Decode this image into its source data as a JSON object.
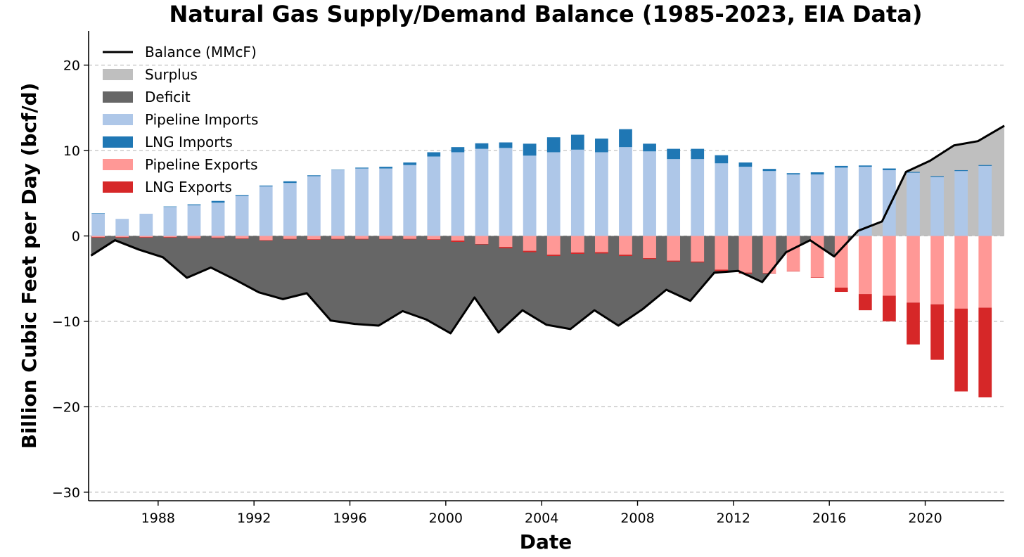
{
  "chart_data": {
    "type": "bar",
    "title": "Natural Gas Supply/Demand Balance (1985-2023, EIA Data)",
    "xlabel": "Date",
    "ylabel": "Billion Cubic Feet per Day (bcf/d)",
    "ylim": [
      -31,
      24
    ],
    "yticks": [
      20,
      10,
      0,
      -10,
      -20,
      -30
    ],
    "ytick_labels": [
      "20",
      "10",
      "0",
      "−10",
      "−20",
      "−30"
    ],
    "xlim": [
      1985.1,
      2023.3
    ],
    "xticks": [
      1988,
      1992,
      1996,
      2000,
      2004,
      2008,
      2012,
      2016,
      2020
    ],
    "xtick_labels": [
      "1988",
      "1992",
      "1996",
      "2000",
      "2004",
      "2008",
      "2012",
      "2016",
      "2020"
    ],
    "grid": "y-dashed",
    "legend_position": "top-left",
    "colors": {
      "balance": "#000000",
      "surplus": "#bfbfbf",
      "deficit": "#666666",
      "pipeline_imports": "#aec7e8",
      "lng_imports": "#1f77b4",
      "pipeline_exports": "#ff9896",
      "lng_exports": "#d62728"
    },
    "legend": [
      {
        "label": "Balance (MMcF)",
        "kind": "line",
        "color_key": "balance"
      },
      {
        "label": "Surplus",
        "kind": "patch",
        "color_key": "surplus"
      },
      {
        "label": "Deficit",
        "kind": "patch",
        "color_key": "deficit"
      },
      {
        "label": "Pipeline Imports",
        "kind": "patch",
        "color_key": "pipeline_imports"
      },
      {
        "label": "LNG Imports",
        "kind": "patch",
        "color_key": "lng_imports"
      },
      {
        "label": "Pipeline Exports",
        "kind": "patch",
        "color_key": "pipeline_exports"
      },
      {
        "label": "LNG Exports",
        "kind": "patch",
        "color_key": "lng_exports"
      }
    ],
    "x": [
      1985.5,
      1986.5,
      1987.5,
      1988.5,
      1989.5,
      1990.5,
      1991.5,
      1992.5,
      1993.5,
      1994.5,
      1995.5,
      1996.5,
      1997.5,
      1998.5,
      1999.5,
      2000.5,
      2001.5,
      2002.5,
      2003.5,
      2004.5,
      2005.5,
      2006.5,
      2007.5,
      2008.5,
      2009.5,
      2010.5,
      2011.5,
      2012.5,
      2013.5,
      2014.5,
      2015.5,
      2016.5,
      2017.5,
      2018.5,
      2019.5,
      2020.5,
      2021.5,
      2022.5
    ],
    "series": [
      {
        "name": "Pipeline Imports",
        "color_key": "pipeline_imports",
        "values": [
          2.6,
          2.0,
          2.6,
          3.4,
          3.6,
          3.9,
          4.7,
          5.8,
          6.2,
          7.0,
          7.7,
          7.9,
          7.9,
          8.3,
          9.3,
          9.8,
          10.2,
          10.3,
          9.4,
          9.8,
          10.1,
          9.8,
          10.4,
          9.9,
          9.0,
          9.0,
          8.5,
          8.1,
          7.6,
          7.2,
          7.2,
          8.0,
          8.1,
          7.7,
          7.4,
          6.9,
          7.6,
          8.2
        ]
      },
      {
        "name": "LNG Imports",
        "color_key": "lng_imports",
        "values": [
          0.05,
          0.0,
          0.0,
          0.05,
          0.1,
          0.2,
          0.1,
          0.1,
          0.2,
          0.1,
          0.05,
          0.1,
          0.2,
          0.3,
          0.5,
          0.6,
          0.65,
          0.65,
          1.4,
          1.75,
          1.75,
          1.6,
          2.1,
          0.9,
          1.2,
          1.2,
          0.95,
          0.5,
          0.25,
          0.15,
          0.25,
          0.2,
          0.15,
          0.2,
          0.1,
          0.1,
          0.1,
          0.1
        ]
      },
      {
        "name": "Pipeline Exports",
        "color_key": "pipeline_exports",
        "values": [
          -0.15,
          -0.15,
          -0.15,
          -0.15,
          -0.25,
          -0.2,
          -0.3,
          -0.5,
          -0.35,
          -0.4,
          -0.35,
          -0.35,
          -0.35,
          -0.35,
          -0.4,
          -0.55,
          -0.95,
          -1.3,
          -1.75,
          -2.2,
          -1.95,
          -1.9,
          -2.2,
          -2.6,
          -2.9,
          -3.0,
          -3.95,
          -4.3,
          -4.35,
          -4.1,
          -4.85,
          -6.05,
          -6.8,
          -7.0,
          -7.8,
          -8.0,
          -8.5,
          -8.4
        ]
      },
      {
        "name": "LNG Exports",
        "color_key": "lng_exports",
        "values": [
          -0.05,
          -0.05,
          -0.05,
          -0.05,
          -0.05,
          -0.05,
          -0.05,
          -0.05,
          -0.05,
          -0.05,
          -0.05,
          -0.05,
          -0.05,
          -0.05,
          -0.05,
          -0.15,
          -0.05,
          -0.15,
          -0.15,
          -0.15,
          -0.15,
          -0.15,
          -0.15,
          -0.1,
          -0.1,
          -0.1,
          -0.15,
          -0.1,
          -0.05,
          -0.05,
          -0.05,
          -0.5,
          -1.9,
          -3.0,
          -4.9,
          -6.5,
          -9.7,
          -10.5
        ]
      },
      {
        "name": "Balance (MMcF)",
        "color_key": "balance",
        "kind": "line",
        "x": [
          1985.2,
          1986.2,
          1987.2,
          1988.2,
          1989.2,
          1990.2,
          1991.2,
          1992.2,
          1993.2,
          1994.2,
          1995.2,
          1996.2,
          1997.2,
          1998.2,
          1999.2,
          2000.2,
          2001.2,
          2002.2,
          2003.2,
          2004.2,
          2005.2,
          2006.2,
          2007.2,
          2008.2,
          2009.2,
          2010.2,
          2011.2,
          2012.2,
          2013.2,
          2014.2,
          2015.2,
          2016.2,
          2017.2,
          2018.2,
          2019.2,
          2020.2,
          2021.2,
          2022.2,
          2023.3
        ],
        "values": [
          -2.3,
          -0.5,
          -1.6,
          -2.5,
          -4.9,
          -3.7,
          -5.1,
          -6.6,
          -7.4,
          -6.7,
          -9.9,
          -10.3,
          -10.5,
          -8.8,
          -9.8,
          -11.4,
          -7.2,
          -11.3,
          -8.7,
          -10.4,
          -10.9,
          -8.7,
          -10.5,
          -8.6,
          -6.3,
          -7.6,
          -4.3,
          -4.1,
          -5.4,
          -1.9,
          -0.5,
          -2.4,
          0.6,
          1.7,
          7.5,
          8.8,
          10.6,
          11.1,
          12.9
        ]
      }
    ]
  }
}
